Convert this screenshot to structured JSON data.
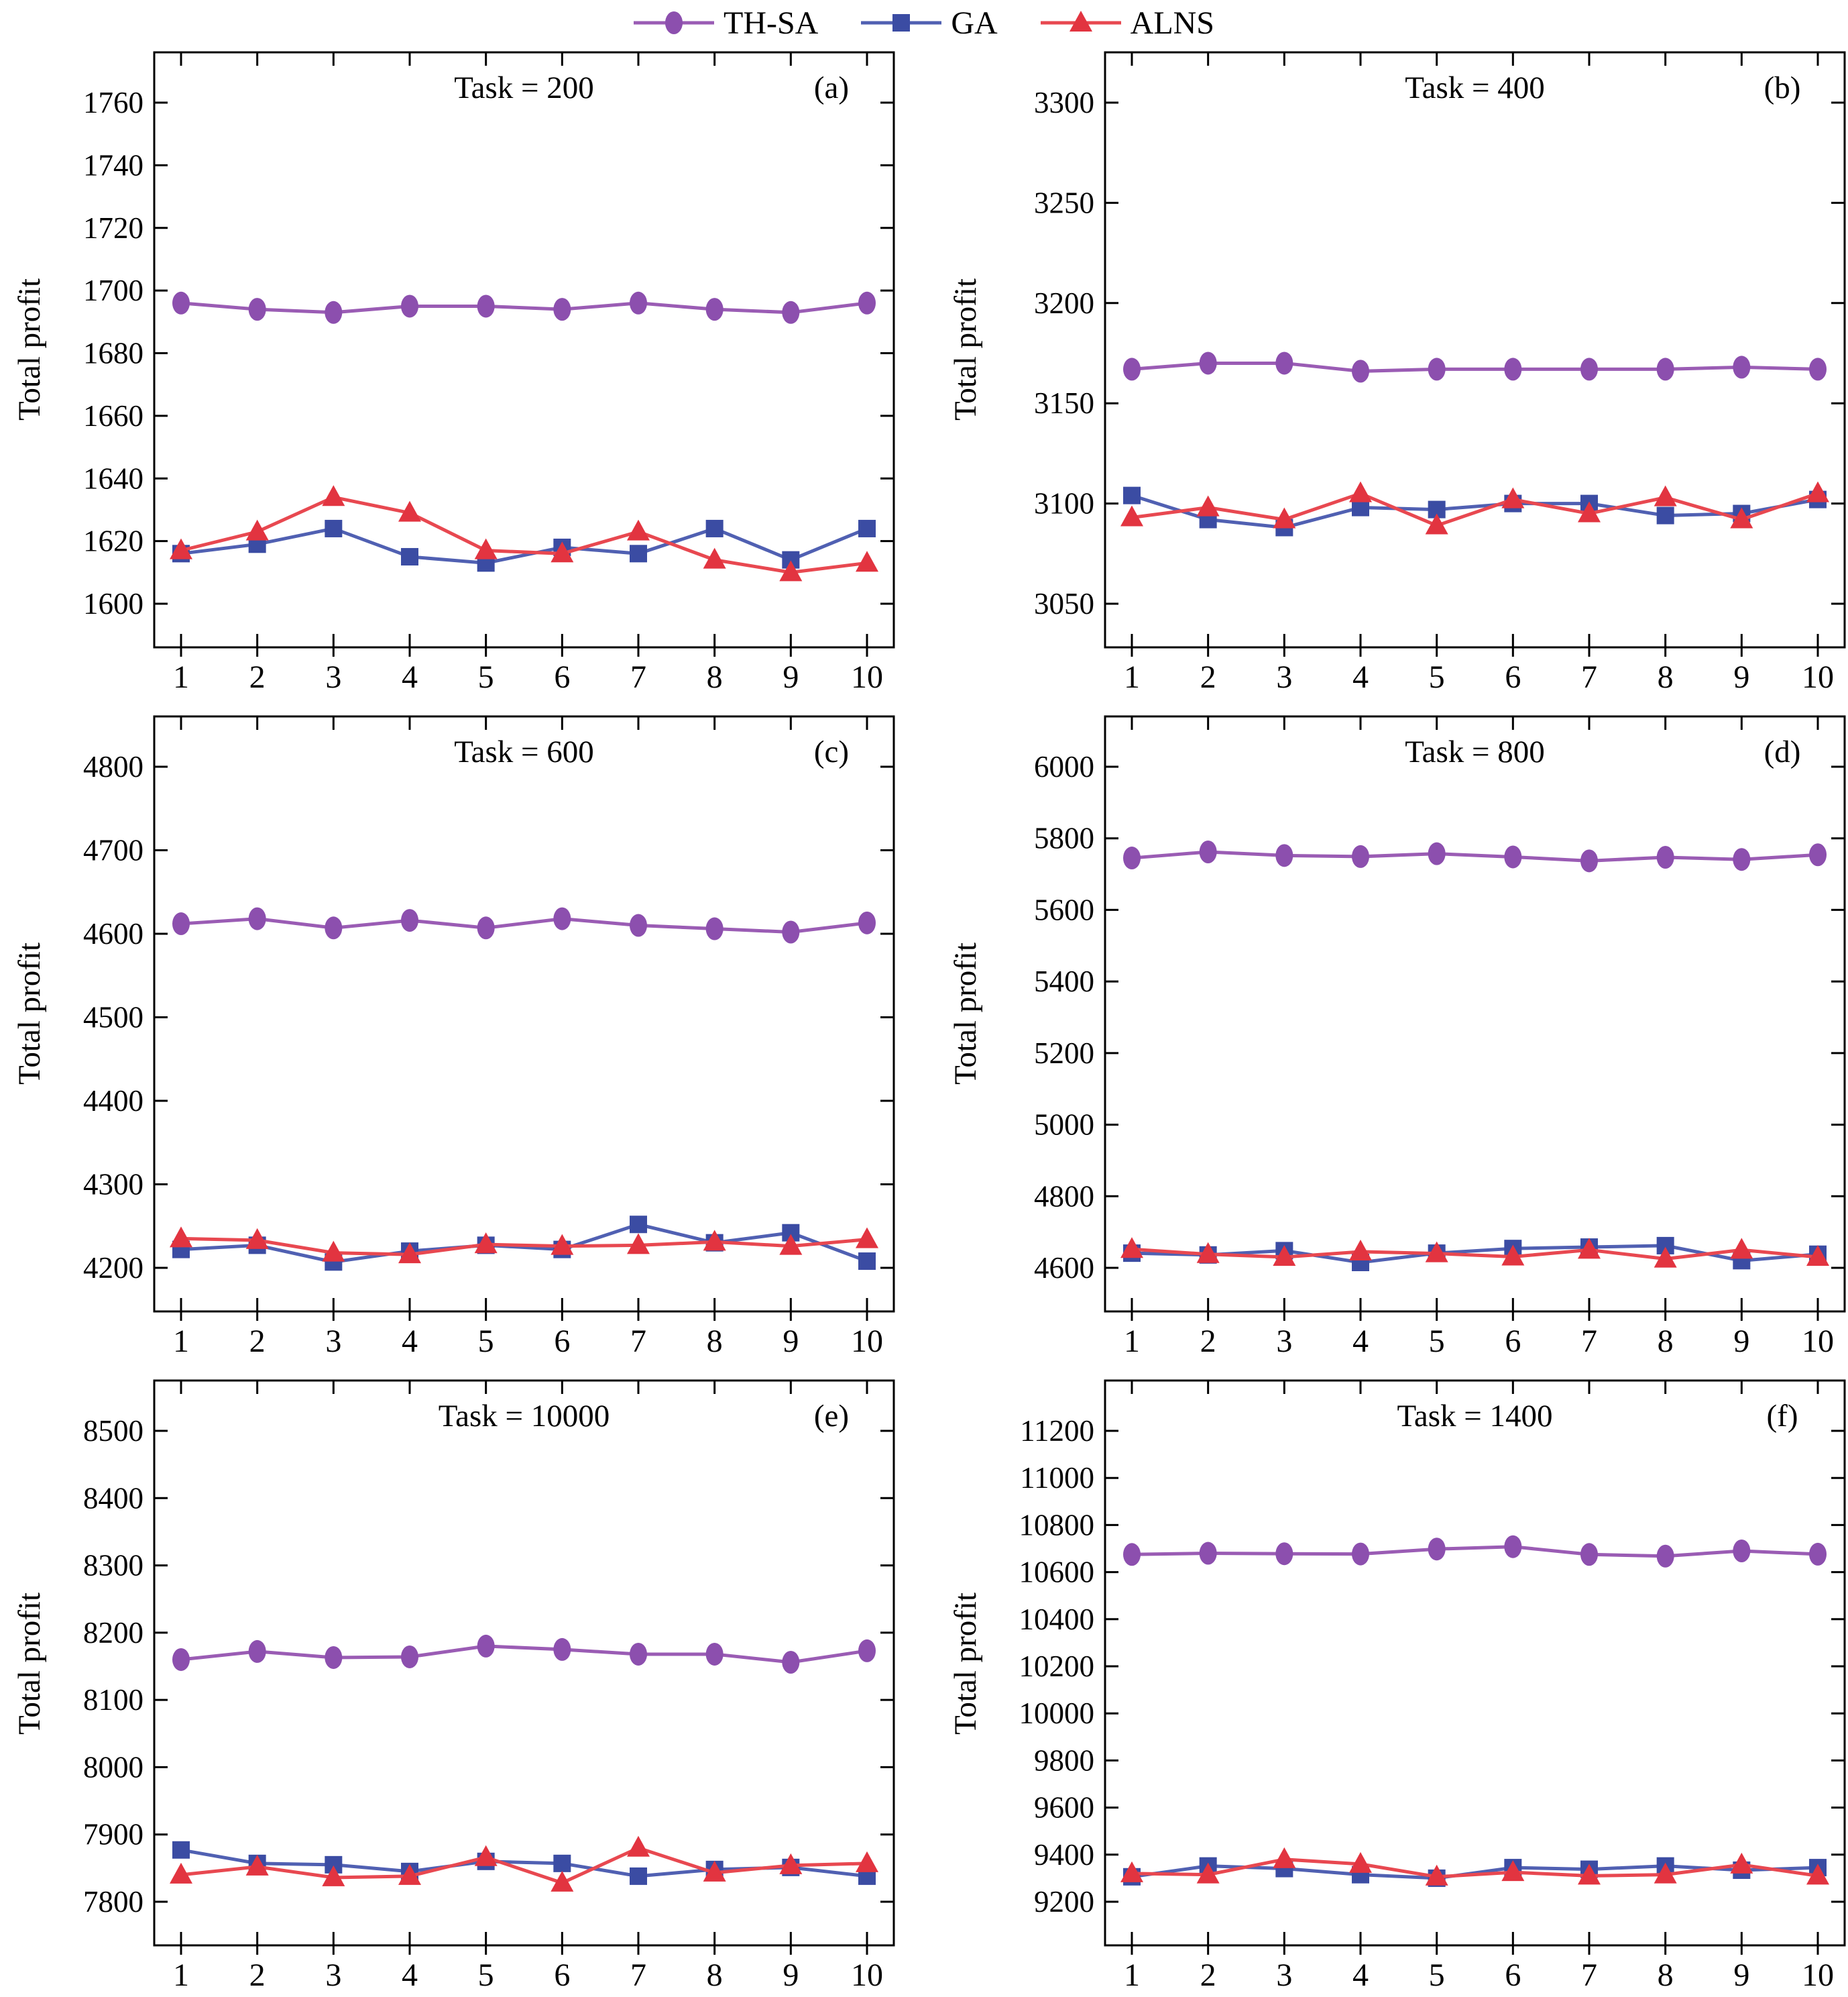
{
  "figure": {
    "type": "multi-panel line chart",
    "legend_position": "top",
    "text_color": "#000000",
    "background": "#ffffff",
    "axis_color": "#000000"
  },
  "legend": {
    "items": [
      {
        "label": "TH-SA",
        "marker": "circle",
        "color": "#8c4fae",
        "line_color": "#9a5cb4"
      },
      {
        "label": "GA",
        "marker": "square",
        "color": "#3b4ca3",
        "line_color": "#5060b2"
      },
      {
        "label": "ALNS",
        "marker": "triangle",
        "color": "#e23440",
        "line_color": "#e84850"
      }
    ]
  },
  "chart_data": [
    {
      "id": "a",
      "type": "line",
      "panel_label": "(a)",
      "title": "Task = 200",
      "ylabel": "Total profit",
      "x": [
        1,
        2,
        3,
        4,
        5,
        6,
        7,
        8,
        9,
        10
      ],
      "yticks": [
        1600,
        1620,
        1640,
        1660,
        1680,
        1700,
        1720,
        1740,
        1760
      ],
      "ylim": [
        1587,
        1779
      ],
      "grid": false,
      "series": [
        {
          "name": "TH-SA",
          "values": [
            1696,
            1694,
            1693,
            1695,
            1695,
            1694,
            1696,
            1694,
            1693,
            1696
          ]
        },
        {
          "name": "GA",
          "values": [
            1616,
            1619,
            1624,
            1615,
            1613,
            1618,
            1616,
            1624,
            1614,
            1624
          ]
        },
        {
          "name": "ALNS",
          "values": [
            1617,
            1623,
            1634,
            1629,
            1617,
            1616,
            1623,
            1614,
            1610,
            1613
          ]
        }
      ]
    },
    {
      "id": "b",
      "type": "line",
      "panel_label": "(b)",
      "title": "Task = 400",
      "ylabel": "Total profit",
      "x": [
        1,
        2,
        3,
        4,
        5,
        6,
        7,
        8,
        9,
        10
      ],
      "yticks": [
        3050,
        3100,
        3150,
        3200,
        3250,
        3300
      ],
      "ylim": [
        3030,
        3332
      ],
      "grid": false,
      "series": [
        {
          "name": "TH-SA",
          "values": [
            3167,
            3170,
            3170,
            3166,
            3167,
            3167,
            3167,
            3167,
            3168,
            3167
          ]
        },
        {
          "name": "GA",
          "values": [
            3104,
            3092,
            3088,
            3098,
            3097,
            3100,
            3100,
            3094,
            3095,
            3102
          ]
        },
        {
          "name": "ALNS",
          "values": [
            3093,
            3098,
            3092,
            3105,
            3089,
            3102,
            3095,
            3103,
            3092,
            3105
          ]
        }
      ]
    },
    {
      "id": "c",
      "type": "line",
      "panel_label": "(c)",
      "title": "Task = 600",
      "ylabel": "Total profit",
      "x": [
        1,
        2,
        3,
        4,
        5,
        6,
        7,
        8,
        9,
        10
      ],
      "yticks": [
        4200,
        4300,
        4400,
        4500,
        4600,
        4700,
        4800
      ],
      "ylim": [
        4150,
        4870
      ],
      "grid": false,
      "series": [
        {
          "name": "TH-SA",
          "values": [
            4612,
            4618,
            4607,
            4616,
            4607,
            4618,
            4610,
            4606,
            4602,
            4613
          ]
        },
        {
          "name": "GA",
          "values": [
            4222,
            4227,
            4207,
            4220,
            4227,
            4222,
            4252,
            4230,
            4242,
            4208
          ]
        },
        {
          "name": "ALNS",
          "values": [
            4235,
            4233,
            4218,
            4216,
            4228,
            4226,
            4227,
            4231,
            4226,
            4234
          ]
        }
      ]
    },
    {
      "id": "d",
      "type": "line",
      "panel_label": "(d)",
      "title": "Task = 800",
      "ylabel": "Total profit",
      "x": [
        1,
        2,
        3,
        4,
        5,
        6,
        7,
        8,
        9,
        10
      ],
      "yticks": [
        4600,
        4800,
        5000,
        5200,
        5400,
        5600,
        5800,
        6000
      ],
      "ylim": [
        4480,
        6140
      ],
      "grid": false,
      "series": [
        {
          "name": "TH-SA",
          "values": [
            5745,
            5762,
            5752,
            5749,
            5757,
            5748,
            5737,
            5747,
            5741,
            5754
          ]
        },
        {
          "name": "GA",
          "values": [
            4641,
            4636,
            4648,
            4615,
            4641,
            4654,
            4658,
            4662,
            4620,
            4638
          ]
        },
        {
          "name": "ALNS",
          "values": [
            4652,
            4638,
            4630,
            4645,
            4640,
            4631,
            4650,
            4625,
            4650,
            4630
          ]
        }
      ]
    },
    {
      "id": "e",
      "type": "line",
      "panel_label": "(e)",
      "title": "Task = 10000",
      "ylabel": "Total profit",
      "x": [
        1,
        2,
        3,
        4,
        5,
        6,
        7,
        8,
        9,
        10
      ],
      "yticks": [
        7800,
        7900,
        8000,
        8100,
        8200,
        8300,
        8400,
        8500
      ],
      "ylim": [
        7740,
        8580
      ],
      "grid": false,
      "series": [
        {
          "name": "TH-SA",
          "values": [
            8160,
            8172,
            8163,
            8164,
            8180,
            8175,
            8168,
            8168,
            8156,
            8173
          ]
        },
        {
          "name": "GA",
          "values": [
            7877,
            7857,
            7855,
            7845,
            7860,
            7857,
            7838,
            7848,
            7851,
            7838
          ]
        },
        {
          "name": "ALNS",
          "values": [
            7840,
            7852,
            7836,
            7838,
            7866,
            7828,
            7880,
            7843,
            7854,
            7857
          ]
        }
      ]
    },
    {
      "id": "f",
      "type": "line",
      "panel_label": "(f)",
      "title": "Task = 1400",
      "ylabel": "Total profit",
      "x": [
        1,
        2,
        3,
        4,
        5,
        6,
        7,
        8,
        9,
        10
      ],
      "yticks": [
        9200,
        9400,
        9600,
        9800,
        10000,
        10200,
        10400,
        10600,
        10800,
        11000,
        11200
      ],
      "ylim": [
        9030,
        11420
      ],
      "grid": false,
      "series": [
        {
          "name": "TH-SA",
          "values": [
            10675,
            10680,
            10678,
            10677,
            10698,
            10708,
            10675,
            10668,
            10690,
            10676
          ]
        },
        {
          "name": "GA",
          "values": [
            9306,
            9352,
            9341,
            9315,
            9300,
            9345,
            9338,
            9352,
            9334,
            9345
          ]
        },
        {
          "name": "ALNS",
          "values": [
            9320,
            9315,
            9380,
            9360,
            9306,
            9325,
            9310,
            9315,
            9357,
            9310
          ]
        }
      ]
    }
  ]
}
